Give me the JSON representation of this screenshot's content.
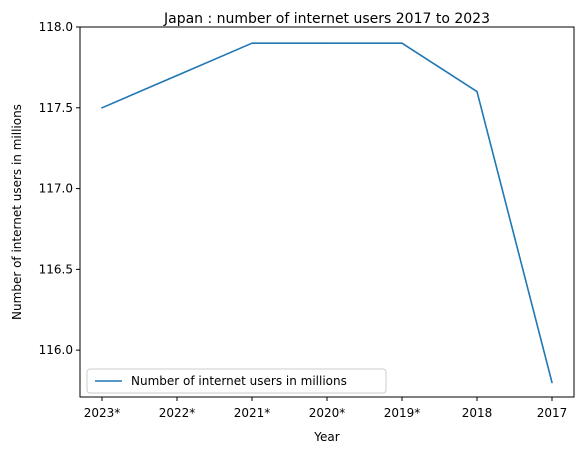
{
  "chart_data": {
    "type": "line",
    "title": "Japan : number of internet users 2017 to 2023",
    "xlabel": "Year",
    "ylabel": "Number of internet users in millions",
    "categories": [
      "2023*",
      "2022*",
      "2021*",
      "2020*",
      "2019*",
      "2018",
      "2017"
    ],
    "series": [
      {
        "name": "Number of internet users in millions",
        "values": [
          117.5,
          117.7,
          117.9,
          117.9,
          117.9,
          117.6,
          115.8
        ],
        "color": "#1f77b4"
      }
    ],
    "ylim": [
      115.71,
      118.0
    ],
    "yticks": [
      "116.0",
      "116.5",
      "117.0",
      "117.5",
      "118.0"
    ],
    "grid": false,
    "legend_position": "lower-left"
  }
}
